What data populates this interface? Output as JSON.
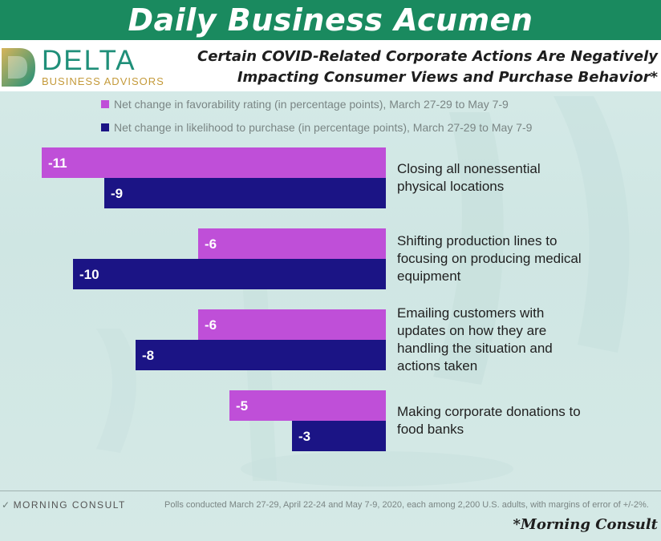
{
  "banner": {
    "title": "Daily Business Acumen"
  },
  "logo": {
    "wordmark": "DELTA",
    "tagline": "BUSINESS ADVISORS"
  },
  "subtitle": {
    "line1": "Certain COVID-Related Corporate Actions Are Negatively",
    "line2": "Impacting Consumer Views and Purchase Behavior*"
  },
  "colors": {
    "favorability": "#bf4fd8",
    "purchase": "#1b1485",
    "banner": "#1a8a5f"
  },
  "chart_data": {
    "type": "bar",
    "orientation": "horizontal",
    "categories": [
      "Closing all nonessential physical locations",
      "Shifting production lines to focusing on producing medical equipment",
      "Emailing customers with updates on how they are handling the situation and actions taken",
      "Making corporate donations to food banks"
    ],
    "category_lines": [
      [
        "Closing all nonessential",
        "physical locations"
      ],
      [
        "Shifting production lines to",
        "focusing on producing medical",
        "equipment"
      ],
      [
        "Emailing customers with",
        "updates on how they are",
        "handling the situation and",
        "actions taken"
      ],
      [
        "Making corporate donations to",
        "food banks"
      ]
    ],
    "series": [
      {
        "name": "Net change in favorability rating (in percentage points), March 27-29 to May 7-9",
        "values": [
          -11,
          -6,
          -6,
          -5
        ]
      },
      {
        "name": "Net change in likelihood to purchase (in percentage points), March 27-29 to May 7-9",
        "values": [
          -9,
          -10,
          -8,
          -3
        ]
      }
    ],
    "data_labels": [
      [
        "-11",
        "-6",
        "-6",
        "-5"
      ],
      [
        "-9",
        "-10",
        "-8",
        "-3"
      ]
    ],
    "xlim": [
      -11,
      0
    ],
    "legend_position": "top-left",
    "grid": false
  },
  "footer": {
    "brand": "MORNING CONSULT",
    "note": "Polls conducted March 27-29, April 22-24 and May 7-9, 2020, each among 2,200 U.S. adults, with margins of error of +/-2%.",
    "source": "*Morning Consult"
  }
}
